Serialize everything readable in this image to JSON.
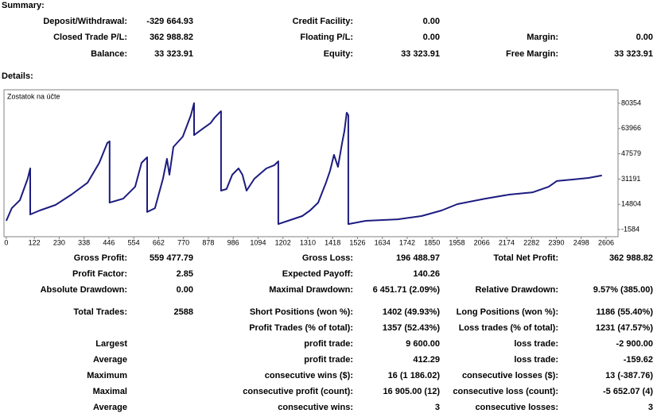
{
  "summary": {
    "title": "Summary:",
    "rows": [
      [
        [
          "Deposit/Withdrawal:",
          "-329 664.93"
        ],
        [
          "Credit Facility:",
          "0.00"
        ],
        null
      ],
      [
        [
          "Closed Trade P/L:",
          "362 988.82"
        ],
        [
          "Floating P/L:",
          "0.00"
        ],
        [
          "Margin:",
          "0.00"
        ]
      ],
      [
        [
          "Balance:",
          "33 323.91"
        ],
        [
          "Equity:",
          "33 323.91"
        ],
        [
          "Free Margin:",
          "33 323.91"
        ]
      ]
    ]
  },
  "details": {
    "title": "Details:",
    "rows": [
      [
        [
          "Gross Profit:",
          "559 477.79"
        ],
        [
          "Gross Loss:",
          "196 488.97"
        ],
        [
          "Total Net Profit:",
          "362 988.82"
        ]
      ],
      [
        [
          "Profit Factor:",
          "2.85"
        ],
        [
          "Expected Payoff:",
          "140.26"
        ],
        null
      ],
      [
        [
          "Absolute Drawdown:",
          "0.00"
        ],
        [
          "Maximal Drawdown:",
          "6 451.71 (2.09%)"
        ],
        [
          "Relative Drawdown:",
          "9.57% (385.00)"
        ]
      ],
      [
        [
          "Total Trades:",
          "2588"
        ],
        [
          "Short Positions (won %):",
          "1402 (49.93%)"
        ],
        [
          "Long Positions (won %):",
          "1186 (55.40%)"
        ]
      ],
      [
        null,
        [
          "Profit Trades (% of total):",
          "1357 (52.43%)"
        ],
        [
          "Loss trades (% of total):",
          "1231 (47.57%)"
        ]
      ],
      [
        [
          "Largest"
        ],
        [
          "profit trade:",
          "9 600.00"
        ],
        [
          "loss trade:",
          "-2 900.00"
        ]
      ],
      [
        [
          "Average"
        ],
        [
          "profit trade:",
          "412.29"
        ],
        [
          "loss trade:",
          "-159.62"
        ]
      ],
      [
        [
          "Maximum"
        ],
        [
          "consecutive wins ($):",
          "16 (1 186.02)"
        ],
        [
          "consecutive losses ($):",
          "13 (-387.76)"
        ]
      ],
      [
        [
          "Maximal"
        ],
        [
          "consecutive profit (count):",
          "16 905.00 (12)"
        ],
        [
          "consecutive loss (count):",
          "-5 652.07 (4)"
        ]
      ],
      [
        [
          "Average"
        ],
        [
          "consecutive wins:",
          "3"
        ],
        [
          "consecutive losses:",
          "3"
        ]
      ]
    ]
  },
  "chart_data": {
    "type": "line",
    "title": "Zostatok na účte",
    "color": "#1c1c80",
    "x": [
      0,
      24,
      59,
      93,
      104,
      104,
      145,
      214,
      283,
      353,
      404,
      439,
      449,
      449,
      508,
      560,
      588,
      612,
      612,
      646,
      681,
      698,
      709,
      726,
      767,
      802,
      816,
      816,
      854,
      888,
      906,
      926,
      933,
      933,
      957,
      982,
      1009,
      1026,
      1044,
      1078,
      1130,
      1165,
      1182,
      1182,
      1234,
      1286,
      1320,
      1355,
      1389,
      1407,
      1424,
      1441,
      1459,
      1469,
      1479,
      1486,
      1486,
      1562,
      1701,
      1804,
      1891,
      1960,
      2081,
      2185,
      2288,
      2357,
      2392,
      2461,
      2530,
      2588
    ],
    "values": [
      4100,
      12300,
      17500,
      31400,
      38100,
      8200,
      10800,
      14400,
      21100,
      28800,
      41700,
      54600,
      55600,
      15900,
      18500,
      26200,
      41700,
      45300,
      9800,
      12300,
      31400,
      44300,
      34000,
      52000,
      58700,
      72600,
      80400,
      59700,
      63900,
      67500,
      71100,
      74200,
      75200,
      23700,
      24700,
      34000,
      38100,
      34000,
      23700,
      31400,
      38100,
      40200,
      42700,
      2000,
      4600,
      7200,
      10800,
      15900,
      28800,
      36600,
      46900,
      39100,
      54600,
      62300,
      74200,
      72600,
      2000,
      4100,
      5100,
      7200,
      10800,
      14900,
      18500,
      21100,
      22600,
      26200,
      29900,
      30900,
      31900,
      33500
    ],
    "xlim": [
      -10,
      2658
    ],
    "ylim": [
      -6200,
      89100
    ],
    "xticks": [
      0,
      122,
      230,
      338,
      446,
      554,
      662,
      770,
      878,
      986,
      1094,
      1202,
      1310,
      1418,
      1526,
      1634,
      1742,
      1850,
      1958,
      2066,
      2174,
      2282,
      2390,
      2498,
      2606
    ],
    "yticks": [
      -1584,
      14804,
      31191,
      47579,
      63966,
      80354
    ]
  }
}
